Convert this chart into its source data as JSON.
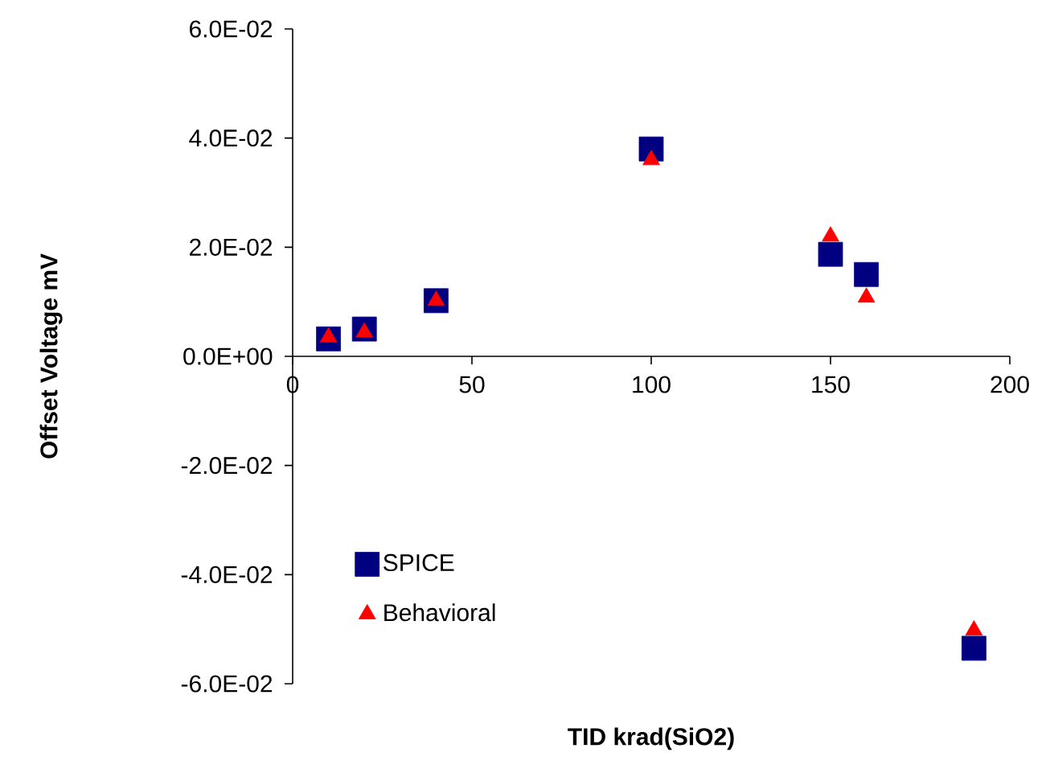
{
  "chart_data": {
    "type": "scatter",
    "xlabel": "TID krad(SiO2)",
    "ylabel": "Offset Voltage mV",
    "x": [
      10,
      20,
      40,
      100,
      150,
      160,
      190
    ],
    "series": [
      {
        "name": "SPICE",
        "color": "#000080",
        "marker": "square",
        "values": [
          0.0032,
          0.005,
          0.0102,
          0.038,
          0.0187,
          0.015,
          -0.0535
        ]
      },
      {
        "name": "Behavioral",
        "color": "#ff0000",
        "marker": "triangle",
        "values": [
          0.0035,
          0.0044,
          0.0102,
          0.036,
          0.022,
          0.0108,
          -0.0502
        ]
      }
    ],
    "xlim": [
      0,
      200
    ],
    "ylim": [
      -0.06,
      0.06
    ],
    "xticks": [
      0,
      50,
      100,
      150,
      200
    ],
    "yticks": [
      {
        "value": -0.06,
        "label": "-6.0E-02"
      },
      {
        "value": -0.04,
        "label": "-4.0E-02"
      },
      {
        "value": -0.02,
        "label": "-2.0E-02"
      },
      {
        "value": 0,
        "label": "0.0E+00"
      },
      {
        "value": 0.02,
        "label": "2.0E-02"
      },
      {
        "value": 0.04,
        "label": "4.0E-02"
      },
      {
        "value": 0.06,
        "label": "6.0E-02"
      }
    ],
    "grid": false,
    "legend": "bottom left"
  }
}
